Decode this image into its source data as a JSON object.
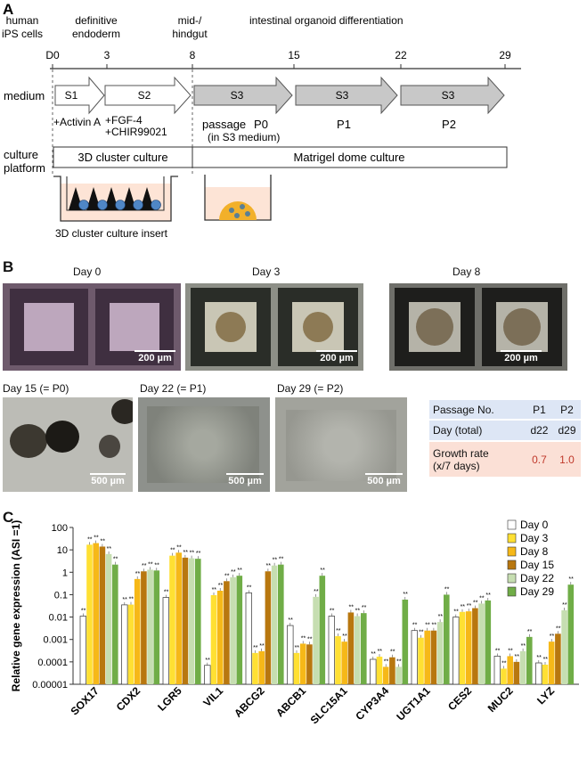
{
  "panel_a": {
    "label": "A",
    "stages": [
      "human\niPS cells",
      "definitive\nendoderm",
      "mid-/\nhindgut",
      "intestinal organoid differentiation"
    ],
    "days": [
      "D0",
      "3",
      "8",
      "15",
      "22",
      "29"
    ],
    "medium_label": "medium",
    "media": [
      "S1",
      "S2",
      "S3",
      "S3",
      "S3"
    ],
    "factors": [
      "+Activin A",
      "+FGF-4",
      "+CHIR99021"
    ],
    "passage_label": "passage",
    "passage_note": "(in S3 medium)",
    "passages": [
      "P0",
      "P1",
      "P2"
    ],
    "platform_label": "culture\nplatform",
    "platforms": [
      "3D cluster culture",
      "Matrigel dome culture"
    ],
    "insert_label": "3D cluster culture insert"
  },
  "panel_b": {
    "label": "B",
    "top_days": [
      "Day 0",
      "Day 3",
      "Day 8"
    ],
    "top_scale": "200 µm",
    "bottom_days": [
      "Day 15 (= P0)",
      "Day 22 (= P1)",
      "Day 29 (= P2)"
    ],
    "bottom_scale": "500 µm",
    "table": {
      "headers": [
        "Passage No.",
        "P1",
        "P2"
      ],
      "rows": [
        [
          "Day (total)",
          "d22",
          "d29"
        ],
        [
          "Growth rate\n(x/7 days)",
          "0.7",
          "1.0"
        ]
      ]
    }
  },
  "panel_c": {
    "label": "C"
  },
  "colors": {
    "arrow_white": "#ffffff",
    "arrow_gray": "#c8c8c8",
    "table_blue": "#dde6f5",
    "table_pink": "#fbe0d6",
    "red_value": "#c0392b",
    "dome_orange": "#f2b02a",
    "dish_fill": "#fde4d6",
    "cell_blue": "#4f86c6"
  },
  "chart_data": {
    "type": "bar",
    "ylabel": "Relative gene expression (ASI =1)",
    "yscale": "log",
    "ylim": [
      1e-05,
      100
    ],
    "yticks": [
      "100",
      "10",
      "1",
      "0.1",
      "0.01",
      "0.001",
      "0.0001",
      "0.00001"
    ],
    "categories": [
      "SOX17",
      "CDX2",
      "LGR5",
      "VIL1",
      "ABCG2",
      "ABCB1",
      "SLC15A1",
      "CYP3A4",
      "UGT1A1",
      "CES2",
      "MUC2",
      "LYZ"
    ],
    "legend_position": "top-right",
    "significance_mark": "**",
    "series": [
      {
        "name": "Day 0",
        "color": "#ffffff",
        "values": [
          0.011,
          0.035,
          0.075,
          7e-05,
          0.12,
          0.0042,
          0.011,
          0.00013,
          0.0025,
          0.01,
          0.00018,
          9e-05
        ]
      },
      {
        "name": "Day 3",
        "color": "#ffe033",
        "values": [
          17,
          0.036,
          5.5,
          0.095,
          0.00025,
          0.00025,
          0.0014,
          0.00017,
          0.0012,
          0.017,
          5e-05,
          7.5e-05
        ]
      },
      {
        "name": "Day 8",
        "color": "#f6b818",
        "values": [
          20,
          0.5,
          7.5,
          0.15,
          0.0003,
          0.00065,
          0.0008,
          6e-05,
          0.0025,
          0.018,
          0.00018,
          0.0008
        ]
      },
      {
        "name": "Day 15",
        "color": "#b8770f",
        "values": [
          14,
          1.1,
          4.5,
          0.4,
          1.1,
          0.0006,
          0.016,
          0.00016,
          0.0025,
          0.025,
          0.0001,
          0.0018
        ]
      },
      {
        "name": "Day 22",
        "color": "#c6deb1",
        "values": [
          6.5,
          1.3,
          4.2,
          0.6,
          2,
          0.08,
          0.011,
          6e-05,
          0.006,
          0.04,
          0.0003,
          0.02
        ]
      },
      {
        "name": "Day 29",
        "color": "#70ad47",
        "values": [
          2.2,
          1.2,
          4,
          0.7,
          2.2,
          0.7,
          0.015,
          0.06,
          0.1,
          0.055,
          0.0013,
          0.28
        ]
      }
    ]
  }
}
